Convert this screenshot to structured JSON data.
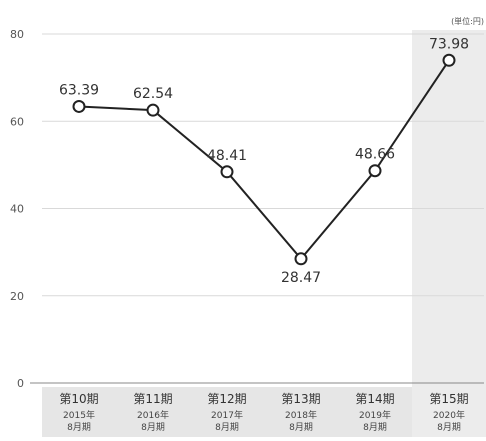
{
  "chart_data": {
    "type": "line",
    "title": "",
    "unit_note": "(単位:円)",
    "categories": [
      {
        "period": "第10期",
        "year": "2015年",
        "month": "8月期"
      },
      {
        "period": "第11期",
        "year": "2016年",
        "month": "8月期"
      },
      {
        "period": "第12期",
        "year": "2017年",
        "month": "8月期"
      },
      {
        "period": "第13期",
        "year": "2018年",
        "month": "8月期"
      },
      {
        "period": "第14期",
        "year": "2019年",
        "month": "8月期"
      },
      {
        "period": "第15期",
        "year": "2020年",
        "month": "8月期"
      }
    ],
    "series": [
      {
        "values": [
          63.39,
          62.54,
          48.41,
          28.47,
          48.66,
          73.98
        ]
      }
    ],
    "data_labels": [
      "63.39",
      "62.54",
      "48.41",
      "28.47",
      "48.66",
      "73.98"
    ],
    "ylim": [
      0,
      80
    ],
    "yticks": [
      0,
      20,
      40,
      60,
      80
    ],
    "grid": true,
    "highlighted_category": 5,
    "colors": {
      "line": "#222222",
      "marker_fill": "#ffffff",
      "grid": "#d9d9d9",
      "axis": "#888888",
      "highlight_band": "#ececec",
      "label_text": "#333333",
      "category_band": "#e6e6e6"
    }
  }
}
